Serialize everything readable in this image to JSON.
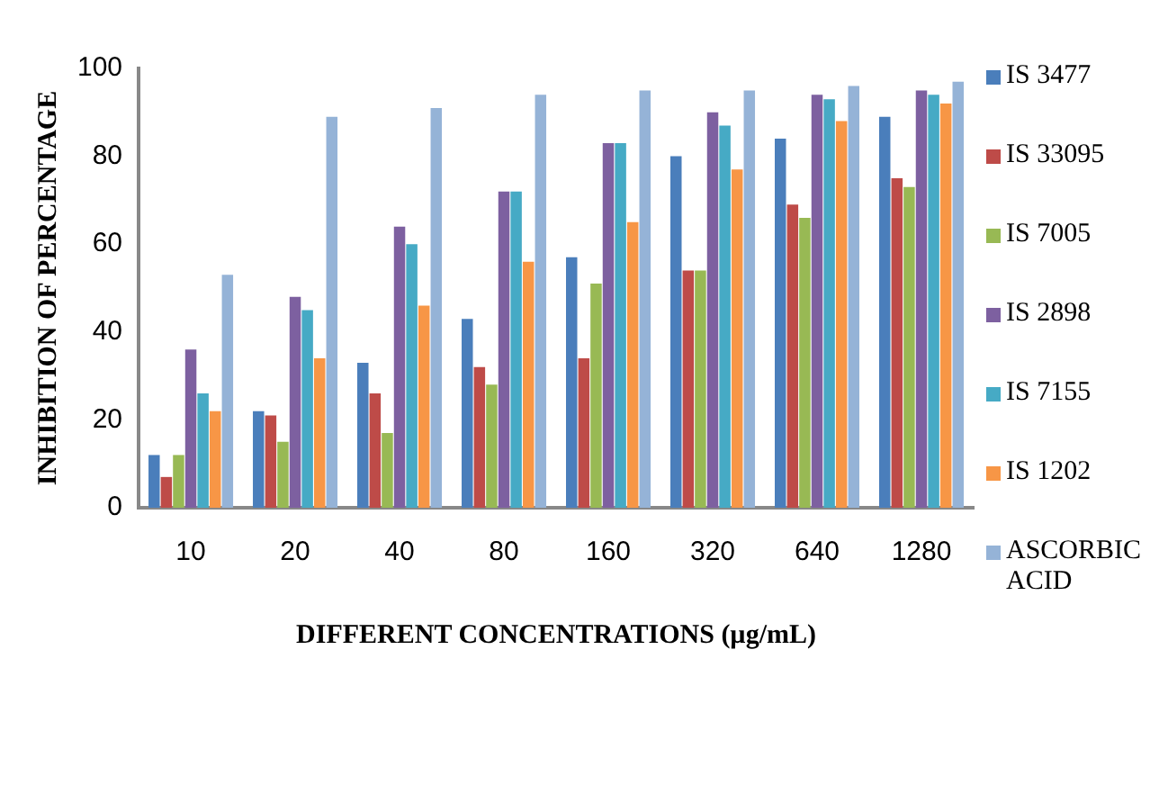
{
  "chart_data": {
    "type": "bar",
    "xlabel": "DIFFERENT CONCENTRATIONS (µg/mL)",
    "ylabel": "INHIBITION OF PERCENTAGE",
    "categories": [
      "10",
      "20",
      "40",
      "80",
      "160",
      "320",
      "640",
      "1280"
    ],
    "series": [
      {
        "name": "IS 3477",
        "color": "#4a7ebb",
        "values": [
          12,
          22,
          33,
          43,
          57,
          80,
          84,
          89
        ]
      },
      {
        "name": "IS 33095",
        "color": "#be4b48",
        "values": [
          7,
          21,
          26,
          32,
          34,
          54,
          69,
          75
        ]
      },
      {
        "name": "IS 7005",
        "color": "#98b954",
        "values": [
          12,
          15,
          17,
          28,
          51,
          54,
          66,
          73
        ]
      },
      {
        "name": "IS 2898",
        "color": "#7d60a0",
        "values": [
          36,
          48,
          64,
          72,
          83,
          90,
          94,
          95
        ]
      },
      {
        "name": "IS 7155",
        "color": "#46aac5",
        "values": [
          26,
          45,
          60,
          72,
          83,
          87,
          93,
          94
        ]
      },
      {
        "name": "IS 1202",
        "color": "#f79646",
        "values": [
          22,
          34,
          46,
          56,
          65,
          77,
          88,
          92
        ]
      },
      {
        "name": "ASCORBIC ACID",
        "color": "#95b3d7",
        "values": [
          53,
          89,
          91,
          94,
          95,
          95,
          96,
          97
        ]
      }
    ],
    "ylim": [
      0,
      100
    ],
    "yticks": [
      0,
      20,
      40,
      60,
      80,
      100
    ],
    "grid": false,
    "legend": "right"
  }
}
